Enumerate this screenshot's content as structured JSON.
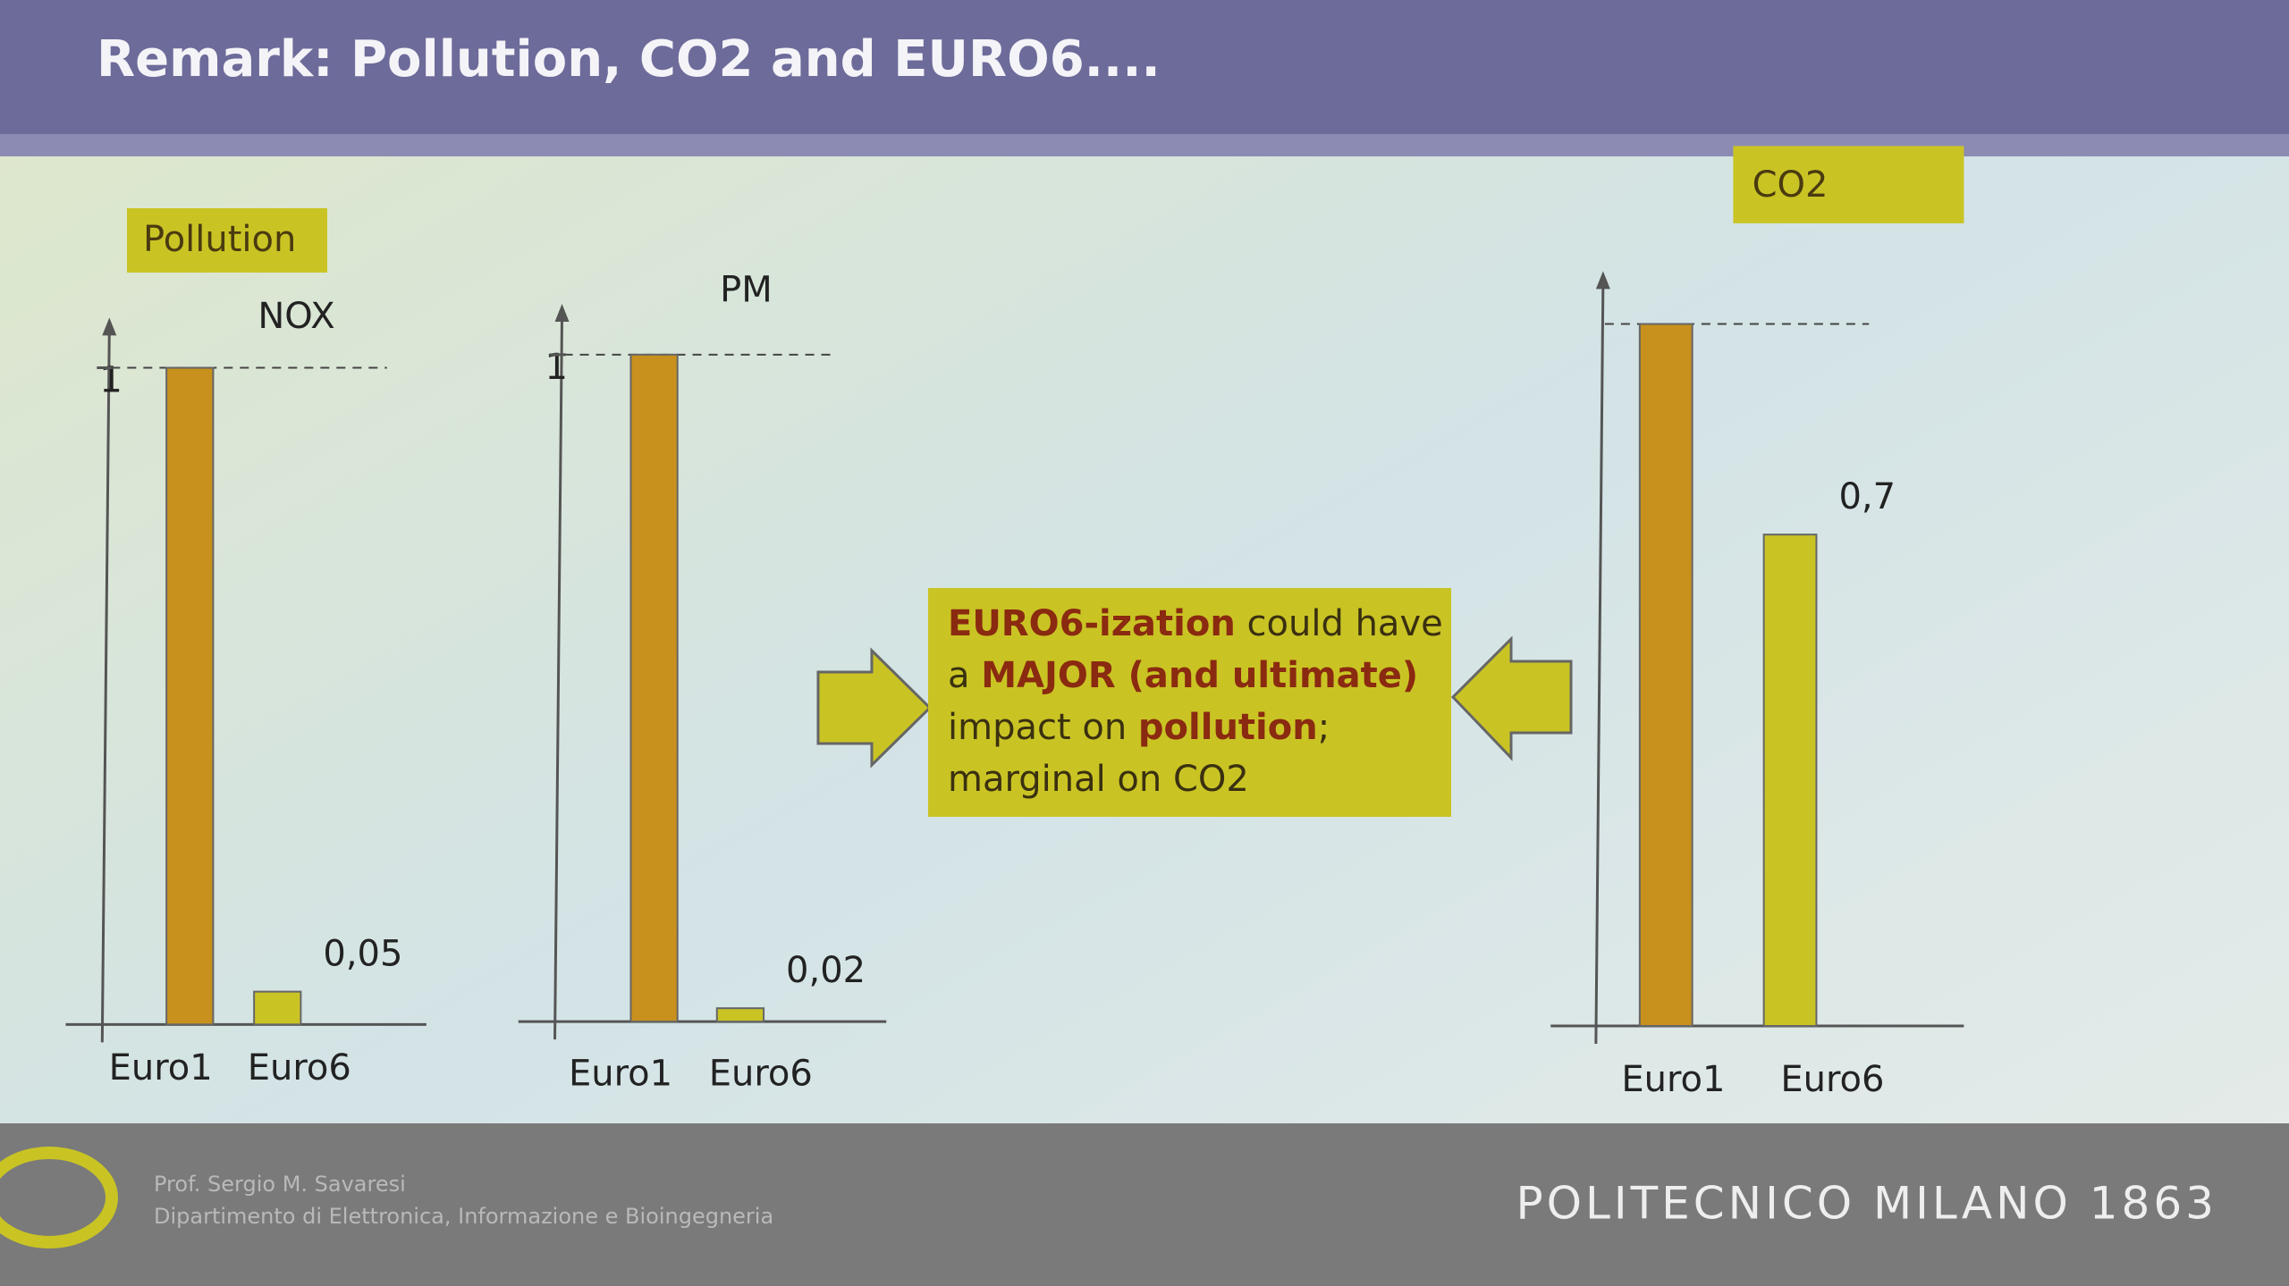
{
  "slide": {
    "title": "Remark: Pollution, CO2 and EURO6....",
    "section_label": "Pollution",
    "callout": [
      [
        {
          "text": "EURO6-ization",
          "emphasis": true
        },
        {
          "text": " could have",
          "emphasis": false
        }
      ],
      [
        {
          "text": "a ",
          "emphasis": false
        },
        {
          "text": "MAJOR (and ultimate)",
          "emphasis": true
        }
      ],
      [
        {
          "text": "impact on ",
          "emphasis": false
        },
        {
          "text": "pollution",
          "emphasis": true
        },
        {
          "text": ";",
          "emphasis": false
        }
      ],
      [
        {
          "text": "marginal on CO2",
          "emphasis": false
        }
      ]
    ],
    "footer": {
      "author": "Prof. Sergio M. Savaresi",
      "department": "Dipartimento di Elettronica, Informazione e Bioingegneria",
      "institution": "POLITECNICO MILANO 1863"
    }
  },
  "chart_data": [
    {
      "type": "bar",
      "title": "NOX",
      "categories": [
        "Euro1",
        "Euro6"
      ],
      "values": [
        1,
        0.05
      ],
      "value_labels": [
        null,
        "0,05"
      ],
      "colors": [
        "#c8901c",
        "#c9c424"
      ],
      "ylim": [
        0,
        1.06
      ],
      "yticks": [
        1
      ]
    },
    {
      "type": "bar",
      "title": "PM",
      "categories": [
        "Euro1",
        "Euro6"
      ],
      "values": [
        1,
        0.02
      ],
      "value_labels": [
        null,
        "0,02"
      ],
      "colors": [
        "#c8901c",
        "#c9c424"
      ],
      "ylim": [
        0,
        1.06
      ],
      "yticks": [
        1
      ]
    },
    {
      "type": "bar",
      "title": "CO2",
      "categories": [
        "Euro1",
        "Euro6"
      ],
      "values": [
        1,
        0.7
      ],
      "value_labels": [
        null,
        "0,7"
      ],
      "colors": [
        "#c8901c",
        "#c9c424"
      ],
      "ylim": [
        0,
        1.06
      ],
      "yticks": []
    }
  ]
}
